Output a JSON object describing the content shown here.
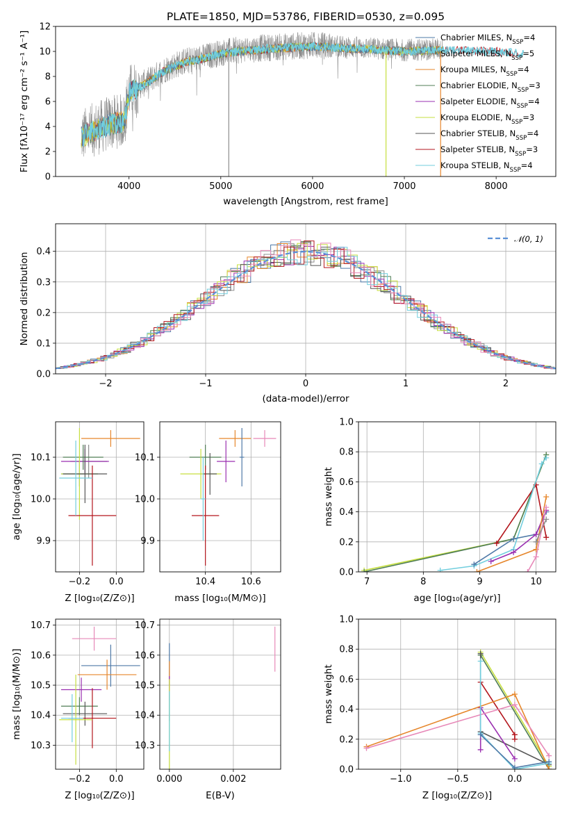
{
  "title": "PLATE=1850, MJD=53786, FIBERID=0530, z=0.095",
  "colors": {
    "Chabrier MILES": "#4e79a7",
    "Salpeter MILES": "#8c8c8c",
    "Kroupa MILES": "#e6862b",
    "Chabrier ELODIE": "#4f7d55",
    "Salpeter ELODIE": "#9a2fb0",
    "Kroupa ELODIE": "#c6df3f",
    "Chabrier STELIB": "#555555",
    "Salpeter STELIB": "#b3151c",
    "Kroupa STELIB": "#71cede",
    "Pink": "#e788b8",
    "Gauss": "#5a90d6"
  },
  "chart_data": [
    {
      "id": "spectrum",
      "type": "line",
      "title": "PLATE=1850, MJD=53786, FIBERID=0530, z=0.095",
      "xlabel": "wavelength [Angstrom, rest frame]",
      "ylabel": "Flux [fλ10⁻¹⁷ erg cm⁻² s⁻¹ A⁻¹]",
      "xlim": [
        3200,
        8650
      ],
      "ylim": [
        0,
        12
      ],
      "xticks": [
        4000,
        5000,
        6000,
        7000,
        8000
      ],
      "yticks": [
        0,
        2,
        4,
        6,
        8,
        10,
        12
      ],
      "legend_position": "right",
      "legend": [
        {
          "label": "Chabrier MILES, N",
          "sub": "SSP",
          "suffix": "=4"
        },
        {
          "label": "Salpeter MILES, N",
          "sub": "SSP",
          "suffix": "=5"
        },
        {
          "label": "Kroupa MILES, N",
          "sub": "SSP",
          "suffix": "=4"
        },
        {
          "label": "Chabrier ELODIE, N",
          "sub": "SSP",
          "suffix": "=3"
        },
        {
          "label": "Salpeter ELODIE, N",
          "sub": "SSP",
          "suffix": "=4"
        },
        {
          "label": "Kroupa ELODIE, N",
          "sub": "SSP",
          "suffix": "=3"
        },
        {
          "label": "Chabrier STELIB, N",
          "sub": "SSP",
          "suffix": "=4"
        },
        {
          "label": "Salpeter STELIB, N",
          "sub": "SSP",
          "suffix": "=3"
        },
        {
          "label": "Kroupa STELIB, N",
          "sub": "SSP",
          "suffix": "=4"
        }
      ],
      "continuum_anchors": {
        "x": [
          3480,
          3600,
          3800,
          3950,
          4000,
          4200,
          4400,
          4600,
          4800,
          5000,
          5200,
          5500,
          6000,
          6500,
          7000,
          7400,
          8000,
          8300
        ],
        "y": [
          3.2,
          3.7,
          4.3,
          4.5,
          6.8,
          7.6,
          8.6,
          9.2,
          9.5,
          9.9,
          10.1,
          10.3,
          10.5,
          10.3,
          10.1,
          10.2,
          10.1,
          9.9
        ]
      },
      "spikes": [
        {
          "x": 5087,
          "y": 0.0
        },
        {
          "x": 6800,
          "y": 0.0
        },
        {
          "x": 7395,
          "y": 0.0
        }
      ]
    },
    {
      "id": "residuals",
      "type": "bar",
      "xlabel": "(data-model)/error",
      "ylabel": "Normed distribution",
      "xlim": [
        -2.5,
        2.5
      ],
      "ylim": [
        0,
        0.49
      ],
      "xticks": [
        -2,
        -1,
        0,
        1,
        2
      ],
      "yticks": [
        0.0,
        0.1,
        0.2,
        0.3,
        0.4
      ],
      "grid": true,
      "legend_position": "top-right",
      "legend": [
        {
          "label": "𝒩(0, 1)",
          "style": "dashed"
        }
      ],
      "bin_width": 0.1,
      "gaussian": {
        "mean": 0,
        "sigma": 1
      }
    },
    {
      "id": "age-vs-Z",
      "type": "scatter",
      "xlabel": "Z [log₁₀(Z/Z⊙)]",
      "ylabel": "age  [log₁₀(age/yr)]",
      "xlim": [
        -0.33,
        0.15
      ],
      "ylim": [
        9.825,
        10.185
      ],
      "xticks": [
        -0.2,
        0.0
      ],
      "xtick_labels": [
        "−0.2",
        "0.0"
      ],
      "yticks": [
        9.9,
        10.0,
        10.1
      ],
      "grid": true,
      "points": [
        {
          "series": "Kroupa MILES",
          "x": -0.03,
          "y": 10.145,
          "xerr": 0.16,
          "yerr": 0.02
        },
        {
          "series": "Salpeter MILES",
          "x": -0.15,
          "y": 10.09,
          "xerr": 0.1,
          "yerr": 0.04
        },
        {
          "series": "Chabrier MILES",
          "x": -0.2,
          "y": 10.06,
          "xerr": 0.1,
          "yerr": 0.03
        },
        {
          "series": "Salpeter ELODIE",
          "x": -0.17,
          "y": 10.09,
          "xerr": 0.13,
          "yerr": 0.03
        },
        {
          "series": "Chabrier ELODIE",
          "x": -0.18,
          "y": 10.1,
          "xerr": 0.11,
          "yerr": 0.03
        },
        {
          "series": "Kroupa ELODIE",
          "x": -0.2,
          "y": 10.06,
          "xerr": 0.1,
          "yerr": 0.11
        },
        {
          "series": "Chabrier STELIB",
          "x": -0.17,
          "y": 10.06,
          "xerr": 0.12,
          "yerr": 0.07
        },
        {
          "series": "Salpeter STELIB",
          "x": -0.13,
          "y": 9.96,
          "xerr": 0.13,
          "yerr": 0.12
        },
        {
          "series": "Kroupa STELIB",
          "x": -0.22,
          "y": 10.05,
          "xerr": 0.09,
          "yerr": 0.09
        }
      ]
    },
    {
      "id": "age-vs-mass",
      "type": "scatter",
      "xlabel": "mass [log₁₀(M/M⊙)]",
      "ylabel": "",
      "xlim": [
        10.2,
        10.73
      ],
      "ylim": [
        9.825,
        10.185
      ],
      "xticks": [
        10.4,
        10.6
      ],
      "yticks": [
        9.9,
        10.0,
        10.1
      ],
      "grid": true,
      "points": [
        {
          "series": "Pink",
          "x": 10.66,
          "y": 10.145,
          "xerr": 0.05,
          "yerr": 0.02
        },
        {
          "series": "Kroupa MILES",
          "x": 10.53,
          "y": 10.145,
          "xerr": 0.07,
          "yerr": 0.02
        },
        {
          "series": "Chabrier MILES",
          "x": 10.56,
          "y": 10.1,
          "xerr": 0.01,
          "yerr": 0.07
        },
        {
          "series": "Salpeter ELODIE",
          "x": 10.49,
          "y": 10.09,
          "xerr": 0.04,
          "yerr": 0.05
        },
        {
          "series": "Chabrier ELODIE",
          "x": 10.4,
          "y": 10.1,
          "xerr": 0.07,
          "yerr": 0.03
        },
        {
          "series": "Kroupa ELODIE",
          "x": 10.38,
          "y": 10.06,
          "xerr": 0.09,
          "yerr": 0.06
        },
        {
          "series": "Chabrier STELIB",
          "x": 10.42,
          "y": 10.06,
          "xerr": 0.03,
          "yerr": 0.05
        },
        {
          "series": "Salpeter STELIB",
          "x": 10.4,
          "y": 9.96,
          "xerr": 0.06,
          "yerr": 0.12
        },
        {
          "series": "Kroupa STELIB",
          "x": 10.39,
          "y": 10.0,
          "xerr": 0.01,
          "yerr": 0.1
        }
      ]
    },
    {
      "id": "weight-vs-age",
      "type": "line",
      "xlabel": "age  [log₁₀(age/yr)]",
      "ylabel": "mass weight",
      "xlim": [
        6.85,
        10.35
      ],
      "ylim": [
        0,
        1.0
      ],
      "xticks": [
        7,
        8,
        9,
        10
      ],
      "yticks": [
        0.0,
        0.2,
        0.4,
        0.6,
        0.8,
        1.0
      ],
      "grid": true,
      "series": [
        {
          "name": "Kroupa ELODIE",
          "x": [
            6.95,
            9.6,
            10.18
          ],
          "y": [
            0.01,
            0.22,
            0.78
          ]
        },
        {
          "name": "Chabrier ELODIE",
          "x": [
            6.95,
            9.6,
            10.18
          ],
          "y": [
            0.0,
            0.22,
            0.78
          ]
        },
        {
          "name": "Salpeter STELIB",
          "x": [
            9.3,
            10.0,
            10.18
          ],
          "y": [
            0.19,
            0.58,
            0.23
          ]
        },
        {
          "name": "Kroupa STELIB",
          "x": [
            8.3,
            8.9,
            9.6,
            10.1,
            10.18
          ],
          "y": [
            0.01,
            0.04,
            0.15,
            0.72,
            0.76
          ]
        },
        {
          "name": "Chabrier MILES",
          "x": [
            8.9,
            9.6,
            10.0,
            10.18
          ],
          "y": [
            0.05,
            0.22,
            0.25,
            0.4
          ]
        },
        {
          "name": "Salpeter ELODIE",
          "x": [
            9.2,
            9.6,
            10.0,
            10.18
          ],
          "y": [
            0.07,
            0.13,
            0.25,
            0.41
          ]
        },
        {
          "name": "Kroupa MILES",
          "x": [
            8.95,
            10.0,
            10.18
          ],
          "y": [
            0.0,
            0.15,
            0.5
          ]
        },
        {
          "name": "Pink",
          "x": [
            9.85,
            10.0,
            10.18
          ],
          "y": [
            0.0,
            0.1,
            0.43
          ]
        },
        {
          "name": "Salpeter MILES",
          "x": [
            10.0,
            10.18
          ],
          "y": [
            0.2,
            0.35
          ]
        }
      ]
    },
    {
      "id": "mass-vs-Z",
      "type": "scatter",
      "xlabel": "Z [log₁₀(Z/Z⊙)]",
      "ylabel": "mass [log₁₀(M/M⊙)]",
      "xlim": [
        -0.33,
        0.15
      ],
      "ylim": [
        10.22,
        10.72
      ],
      "xticks": [
        -0.2,
        0.0
      ],
      "xtick_labels": [
        "−0.2",
        "0.0"
      ],
      "yticks": [
        10.3,
        10.4,
        10.5,
        10.6,
        10.7
      ],
      "grid": true,
      "points": [
        {
          "series": "Pink",
          "x": -0.12,
          "y": 10.655,
          "xerr": 0.12,
          "yerr": 0.04
        },
        {
          "series": "Chabrier MILES",
          "x": -0.03,
          "y": 10.565,
          "xerr": 0.16,
          "yerr": 0.07
        },
        {
          "series": "Kroupa MILES",
          "x": -0.05,
          "y": 10.535,
          "xerr": 0.16,
          "yerr": 0.05
        },
        {
          "series": "Salpeter ELODIE",
          "x": -0.19,
          "y": 10.485,
          "xerr": 0.11,
          "yerr": 0.04
        },
        {
          "series": "Chabrier ELODIE",
          "x": -0.2,
          "y": 10.43,
          "xerr": 0.1,
          "yerr": 0.03
        },
        {
          "series": "Chabrier STELIB",
          "x": -0.17,
          "y": 10.405,
          "xerr": 0.12,
          "yerr": 0.04
        },
        {
          "series": "Salpeter STELIB",
          "x": -0.13,
          "y": 10.39,
          "xerr": 0.13,
          "yerr": 0.1
        },
        {
          "series": "Kroupa ELODIE",
          "x": -0.22,
          "y": 10.385,
          "xerr": 0.09,
          "yerr": 0.15
        },
        {
          "series": "Kroupa STELIB",
          "x": -0.24,
          "y": 10.39,
          "xerr": 0.06,
          "yerr": 0.08
        }
      ]
    },
    {
      "id": "mass-vs-EBV",
      "type": "scatter",
      "xlabel": "E(B-V)",
      "ylabel": "",
      "xlim": [
        -0.0003,
        0.00348
      ],
      "ylim": [
        10.22,
        10.72
      ],
      "xticks": [
        0.0,
        0.002
      ],
      "xtick_labels": [
        "0.000",
        "0.002"
      ],
      "yticks": [
        10.3,
        10.4,
        10.5,
        10.6,
        10.7
      ],
      "grid": true,
      "points": [
        {
          "series": "Pink",
          "x": 0.0033,
          "y": 10.62,
          "xerr": 0.0,
          "yerr": 0.075
        },
        {
          "series": "Chabrier MILES",
          "x": 0.0,
          "y": 10.57,
          "xerr": 0.0,
          "yerr": 0.07
        },
        {
          "series": "Kroupa MILES",
          "x": 0.0,
          "y": 10.53,
          "xerr": 0.0,
          "yerr": 0.05
        },
        {
          "series": "Salpeter ELODIE",
          "x": 0.0,
          "y": 10.49,
          "xerr": 0.0,
          "yerr": 0.04
        },
        {
          "series": "Chabrier ELODIE",
          "x": 0.0,
          "y": 10.43,
          "xerr": 0.0,
          "yerr": 0.05
        },
        {
          "series": "Kroupa ELODIE",
          "x": 0.0,
          "y": 10.37,
          "xerr": 0.0,
          "yerr": 0.15
        },
        {
          "series": "Kroupa STELIB",
          "x": 0.0,
          "y": 10.38,
          "xerr": 0.0,
          "yerr": 0.1
        }
      ]
    },
    {
      "id": "weight-vs-Z",
      "type": "line",
      "xlabel": "Z [log₁₀(Z/Z⊙)]",
      "ylabel": "mass weight",
      "xlim": [
        -1.37,
        0.36
      ],
      "ylim": [
        0,
        1.0
      ],
      "xticks": [
        -1.0,
        -0.5,
        0.0
      ],
      "xtick_labels": [
        "−1.0",
        "−0.5",
        "0.0"
      ],
      "yticks": [
        0.0,
        0.2,
        0.4,
        0.6,
        0.8,
        1.0
      ],
      "grid": true,
      "series": [
        {
          "name": "Kroupa ELODIE",
          "x": [
            -0.3,
            0.3
          ],
          "y": [
            0.78,
            0.02
          ]
        },
        {
          "name": "Chabrier ELODIE",
          "x": [
            -0.3,
            0.3
          ],
          "y": [
            0.76,
            0.0
          ]
        },
        {
          "name": "Chabrier STELIB",
          "x": [
            -0.3,
            -0.3,
            0.3
          ],
          "y": [
            0.77,
            0.25,
            0.03
          ]
        },
        {
          "name": "Salpeter STELIB",
          "x": [
            -0.3,
            0.0,
            0.0
          ],
          "y": [
            0.58,
            0.23,
            0.2
          ]
        },
        {
          "name": "Salpeter ELODIE",
          "x": [
            -0.3,
            -0.3,
            0.0
          ],
          "y": [
            0.13,
            0.41,
            0.07
          ]
        },
        {
          "name": "Kroupa MILES",
          "x": [
            -1.3,
            0.0,
            0.3
          ],
          "y": [
            0.15,
            0.5,
            0.0
          ]
        },
        {
          "name": "Pink",
          "x": [
            -1.3,
            0.0,
            0.3
          ],
          "y": [
            0.14,
            0.43,
            0.09
          ]
        },
        {
          "name": "Kroupa STELIB",
          "x": [
            -0.3,
            -0.3,
            0.0,
            0.3
          ],
          "y": [
            0.72,
            0.24,
            0.0,
            0.04
          ]
        },
        {
          "name": "Chabrier MILES",
          "x": [
            -0.3,
            0.0,
            0.3
          ],
          "y": [
            0.23,
            0.01,
            0.05
          ]
        }
      ]
    }
  ]
}
